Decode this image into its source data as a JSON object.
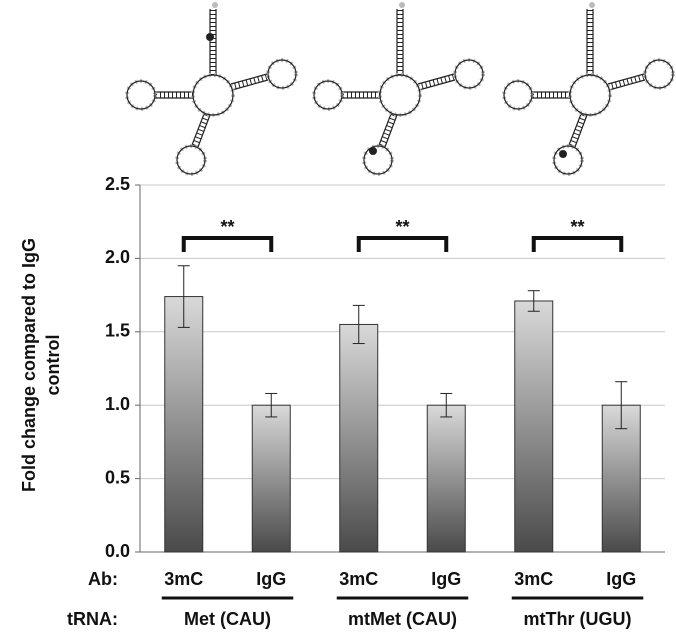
{
  "chart_data": {
    "type": "bar",
    "ylabel": [
      "Fold change compared to IgG",
      "control"
    ],
    "categories": [
      "3mC",
      "IgG",
      "3mC",
      "IgG",
      "3mC",
      "IgG"
    ],
    "series": [
      {
        "values": [
          1.74,
          1.0,
          1.55,
          1.0,
          1.71,
          1.0
        ],
        "errors": [
          0.21,
          0.08,
          0.13,
          0.08,
          0.07,
          0.16
        ],
        "gradient": [
          "#d9d9d9",
          "#4a4a4a"
        ]
      }
    ],
    "ylim": [
      0,
      2.5
    ],
    "yticks": [
      {
        "value": 0,
        "label": "0.0"
      },
      0.5,
      {
        "value": 1,
        "label": "1.0"
      },
      1.5,
      {
        "value": 2,
        "label": "2.0"
      },
      2.5
    ],
    "grid": true,
    "annotations": [
      "**",
      "**",
      "**"
    ],
    "row_labels": [
      "Ab:",
      "tRNA:"
    ],
    "groups": [
      "Met (CAU)",
      "mtMet (CAU)",
      "mtThr (UGU)"
    ],
    "group_colors": [
      "#777777",
      "#777777",
      "#111111"
    ]
  }
}
